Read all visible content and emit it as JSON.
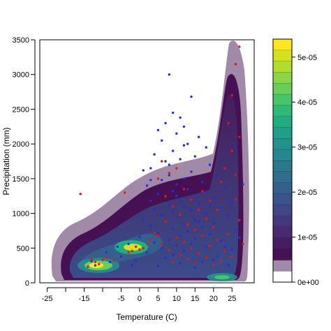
{
  "chart_data": {
    "type": "scatter",
    "xlabel": "Temperature (C)",
    "ylabel": "Precipitation (mm)",
    "xlim": [
      -27,
      31
    ],
    "ylim": [
      0,
      3500
    ],
    "x_ticks": [
      -25,
      -15,
      -5,
      0,
      5,
      10,
      15,
      20,
      25
    ],
    "x_tick_labels": [
      "-25",
      "-15",
      "-5",
      "0",
      "5",
      "10",
      "15",
      "20",
      "25"
    ],
    "x_minor_ticks": [
      -20,
      -10
    ],
    "y_ticks": [
      0,
      500,
      1000,
      1500,
      2000,
      2500,
      3000,
      3500
    ],
    "y_tick_labels": [
      "0",
      "500",
      "1000",
      "1500",
      "2000",
      "2500",
      "3000",
      "3500"
    ],
    "grid": false,
    "legend": "colorbar at right",
    "density_colorbar": {
      "min": 0,
      "max": 5.4e-05,
      "ticks": [
        0,
        1e-05,
        2e-05,
        3e-05,
        4e-05,
        5e-05
      ],
      "tick_labels": [
        "0e+00",
        "1e-05",
        "2e-05",
        "3e-05",
        "4e-05",
        "5e-05"
      ],
      "colors": [
        "#ffffff",
        "#a08aa8",
        "#461152",
        "#461d63",
        "#472a6f",
        "#45377b",
        "#414687",
        "#3b538c",
        "#35608d",
        "#306d8e",
        "#2c798e",
        "#27868e",
        "#22938c",
        "#1f9f89",
        "#22ac82",
        "#30b878",
        "#48c46b",
        "#67cd5b",
        "#8ad648",
        "#b1dd2f",
        "#d6e221",
        "#fde725"
      ]
    },
    "density_peaks": [
      {
        "x": -11,
        "y": 320,
        "level": 1.0
      },
      {
        "x": -2,
        "y": 480,
        "level": 0.7
      },
      {
        "x": 23,
        "y": 90,
        "level": 0.35
      },
      {
        "x": 27,
        "y": 2600,
        "level": 0.25
      }
    ],
    "series": [
      {
        "color": "#2a2ad8",
        "points": [
          [
            8,
            3000
          ],
          [
            14,
            2680
          ],
          [
            9,
            2450
          ],
          [
            11,
            2380
          ],
          [
            7,
            2300
          ],
          [
            12,
            2250
          ],
          [
            5,
            2200
          ],
          [
            10,
            2150
          ],
          [
            16,
            2100
          ],
          [
            6,
            2050
          ],
          [
            13,
            2000
          ],
          [
            18,
            1950
          ],
          [
            9,
            1900
          ],
          [
            4,
            1850
          ],
          [
            15,
            1820
          ],
          [
            11,
            1780
          ],
          [
            7,
            1750
          ],
          [
            19,
            1700
          ],
          [
            3,
            1650
          ],
          [
            14,
            1600
          ],
          [
            8,
            1550
          ],
          [
            21,
            1540
          ],
          [
            12,
            1500
          ],
          [
            6,
            1480
          ],
          [
            17,
            1450
          ],
          [
            10,
            1420
          ],
          [
            2,
            1400
          ],
          [
            23,
            1380
          ],
          [
            13,
            1350
          ],
          [
            9,
            1320
          ],
          [
            18,
            1300
          ],
          [
            5,
            1280
          ],
          [
            15,
            1260
          ],
          [
            7,
            1240
          ],
          [
            20,
            1220
          ],
          [
            11,
            1200
          ],
          [
            3,
            1180
          ],
          [
            25,
            1160
          ],
          [
            16,
            1140
          ],
          [
            8,
            1120
          ],
          [
            12,
            1100
          ],
          [
            22,
            1080
          ],
          [
            4,
            1060
          ],
          [
            14,
            1040
          ],
          [
            9,
            1020
          ],
          [
            18,
            1000
          ],
          [
            6,
            980
          ],
          [
            24,
            960
          ],
          [
            10,
            940
          ],
          [
            1,
            920
          ],
          [
            15,
            900
          ],
          [
            7,
            880
          ],
          [
            20,
            860
          ],
          [
            12,
            840
          ],
          [
            3,
            820
          ],
          [
            17,
            800
          ],
          [
            9,
            780
          ],
          [
            26,
            760
          ],
          [
            13,
            740
          ],
          [
            5,
            720
          ],
          [
            19,
            700
          ],
          [
            11,
            680
          ],
          [
            0,
            660
          ],
          [
            15,
            640
          ],
          [
            8,
            620
          ],
          [
            22,
            600
          ],
          [
            4,
            580
          ],
          [
            14,
            560
          ],
          [
            10,
            540
          ],
          [
            18,
            520
          ],
          [
            6,
            500
          ],
          [
            25,
            480
          ],
          [
            12,
            460
          ],
          [
            2,
            440
          ],
          [
            16,
            420
          ],
          [
            9,
            400
          ],
          [
            21,
            380
          ],
          [
            7,
            360
          ],
          [
            13,
            340
          ],
          [
            -1,
            320
          ],
          [
            17,
            300
          ],
          [
            11,
            280
          ],
          [
            24,
            260
          ],
          [
            5,
            240
          ],
          [
            15,
            220
          ],
          [
            -5,
            380
          ],
          [
            -8,
            300
          ],
          [
            -12,
            250
          ],
          [
            -3,
            560
          ],
          [
            -9,
            440
          ],
          [
            -6,
            520
          ],
          [
            -13,
            310
          ],
          [
            1,
            1620
          ],
          [
            3,
            1480
          ],
          [
            10,
            1250
          ],
          [
            16,
            880
          ],
          [
            19,
            1120
          ],
          [
            27,
            650
          ],
          [
            23,
            520
          ],
          [
            20,
            330
          ],
          [
            -2,
            250
          ],
          [
            28,
            1420
          ],
          [
            26,
            1950
          ],
          [
            12,
            1980
          ],
          [
            8,
            1700
          ]
        ]
      },
      {
        "color": "#e01818",
        "points": [
          [
            -16,
            1280
          ],
          [
            27,
            3400
          ],
          [
            26,
            3150
          ],
          [
            25,
            2700
          ],
          [
            24,
            2300
          ],
          [
            27,
            2100
          ],
          [
            25,
            1900
          ],
          [
            23,
            1650
          ],
          [
            26,
            1550
          ],
          [
            22,
            1450
          ],
          [
            6,
            1750
          ],
          [
            8,
            1580
          ],
          [
            5,
            1500
          ],
          [
            10,
            1650
          ],
          [
            12,
            1350
          ],
          [
            14,
            1200
          ],
          [
            9,
            1100
          ],
          [
            16,
            1050
          ],
          [
            11,
            980
          ],
          [
            18,
            920
          ],
          [
            7,
            880
          ],
          [
            13,
            840
          ],
          [
            20,
            800
          ],
          [
            15,
            760
          ],
          [
            4,
            720
          ],
          [
            17,
            680
          ],
          [
            10,
            650
          ],
          [
            21,
            620
          ],
          [
            12,
            590
          ],
          [
            6,
            560
          ],
          [
            19,
            530
          ],
          [
            14,
            500
          ],
          [
            8,
            470
          ],
          [
            23,
            450
          ],
          [
            16,
            420
          ],
          [
            11,
            400
          ],
          [
            25,
            380
          ],
          [
            18,
            360
          ],
          [
            13,
            340
          ],
          [
            22,
            320
          ],
          [
            9,
            300
          ],
          [
            15,
            280
          ],
          [
            20,
            260
          ],
          [
            -1,
            520
          ],
          [
            0,
            480
          ],
          [
            -2,
            460
          ],
          [
            1,
            500
          ],
          [
            -3,
            440
          ],
          [
            -10,
            330
          ],
          [
            -12,
            300
          ],
          [
            -11,
            270
          ],
          [
            -13,
            340
          ],
          [
            -9,
            360
          ],
          [
            -7,
            320
          ],
          [
            -14,
            230
          ],
          [
            2,
            560
          ],
          [
            3,
            620
          ],
          [
            5,
            680
          ],
          [
            24,
            700
          ],
          [
            27,
            900
          ],
          [
            26,
            1200
          ],
          [
            28,
            560
          ],
          [
            19,
            1180
          ],
          [
            17,
            1320
          ],
          [
            21,
            1050
          ],
          [
            7,
            1250
          ],
          [
            -4,
            1300
          ]
        ]
      }
    ]
  }
}
